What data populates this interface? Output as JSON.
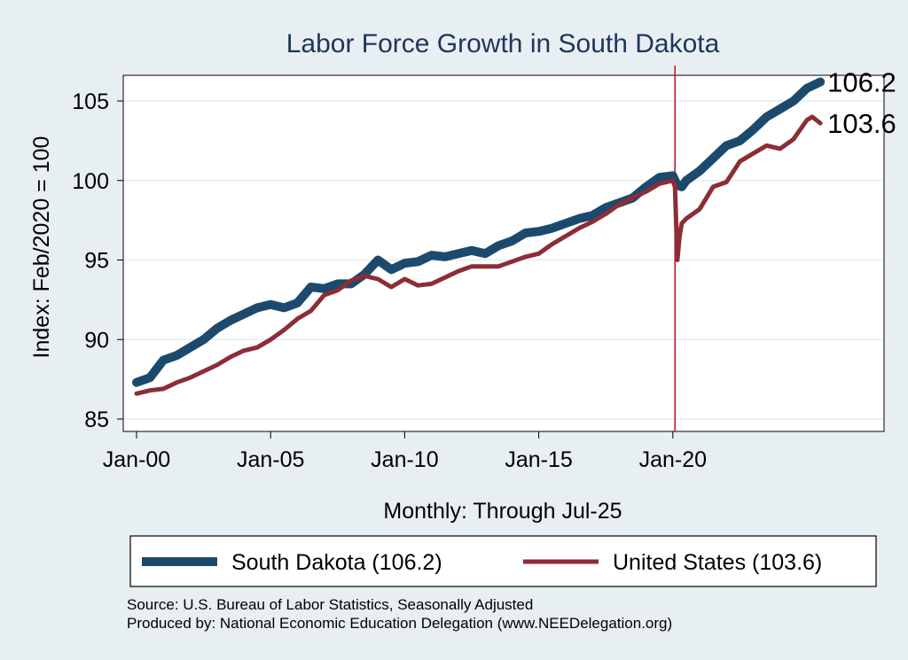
{
  "chart_data": {
    "type": "line",
    "title": "Labor Force Growth in South Dakota",
    "xlabel": "Monthly: Through Jul-25",
    "ylabel": "Index: Feb/2020 = 100",
    "xlim": [
      2000.0,
      2028.0
    ],
    "ylim": [
      84.5,
      107.1
    ],
    "x_ticks": [
      {
        "value": 2000,
        "label": "Jan-00"
      },
      {
        "value": 2005,
        "label": "Jan-05"
      },
      {
        "value": 2010,
        "label": "Jan-10"
      },
      {
        "value": 2015,
        "label": "Jan-15"
      },
      {
        "value": 2020,
        "label": "Jan-20"
      }
    ],
    "y_ticks": [
      85,
      90,
      95,
      100,
      105
    ],
    "grid": true,
    "vline": {
      "x": 2020.08,
      "color": "#c01a3a"
    },
    "series": [
      {
        "name": "South Dakota (106.2)",
        "color": "#1c4a6e",
        "end_label": "106.2",
        "x": [
          2000.0,
          2000.5,
          2001.0,
          2001.5,
          2002.0,
          2002.5,
          2003.0,
          2003.5,
          2004.0,
          2004.5,
          2005.0,
          2005.5,
          2006.0,
          2006.5,
          2007.0,
          2007.5,
          2008.0,
          2008.5,
          2009.0,
          2009.5,
          2010.0,
          2010.5,
          2011.0,
          2011.5,
          2012.0,
          2012.5,
          2013.0,
          2013.5,
          2014.0,
          2014.5,
          2015.0,
          2015.5,
          2016.0,
          2016.5,
          2017.0,
          2017.5,
          2018.0,
          2018.5,
          2019.0,
          2019.5,
          2020.0,
          2020.17,
          2020.33,
          2020.5,
          2021.0,
          2021.5,
          2022.0,
          2022.5,
          2023.0,
          2023.5,
          2024.0,
          2024.5,
          2025.0,
          2025.5
        ],
        "values": [
          87.3,
          87.6,
          88.7,
          89.0,
          89.5,
          90.0,
          90.7,
          91.2,
          91.6,
          92.0,
          92.2,
          92.0,
          92.3,
          93.3,
          93.2,
          93.5,
          93.5,
          94.1,
          95.0,
          94.4,
          94.8,
          94.9,
          95.3,
          95.2,
          95.4,
          95.6,
          95.4,
          95.9,
          96.2,
          96.7,
          96.8,
          97.0,
          97.3,
          97.6,
          97.8,
          98.3,
          98.6,
          98.9,
          99.6,
          100.2,
          100.3,
          99.7,
          99.6,
          100.0,
          100.6,
          101.4,
          102.2,
          102.5,
          103.2,
          104.0,
          104.5,
          105.0,
          105.8,
          106.2
        ]
      },
      {
        "name": "United States (103.6)",
        "color": "#8c2d35",
        "end_label": "103.6",
        "x": [
          2000.0,
          2000.5,
          2001.0,
          2001.5,
          2002.0,
          2002.5,
          2003.0,
          2003.5,
          2004.0,
          2004.5,
          2005.0,
          2005.5,
          2006.0,
          2006.5,
          2007.0,
          2007.5,
          2008.0,
          2008.5,
          2009.0,
          2009.5,
          2010.0,
          2010.5,
          2011.0,
          2011.5,
          2012.0,
          2012.5,
          2013.0,
          2013.5,
          2014.0,
          2014.5,
          2015.0,
          2015.5,
          2016.0,
          2016.5,
          2017.0,
          2017.5,
          2018.0,
          2018.5,
          2019.0,
          2019.5,
          2020.0,
          2020.08,
          2020.17,
          2020.25,
          2020.33,
          2020.5,
          2021.0,
          2021.5,
          2022.0,
          2022.5,
          2023.0,
          2023.5,
          2024.0,
          2024.5,
          2025.0,
          2025.2,
          2025.5
        ],
        "values": [
          86.6,
          86.8,
          86.9,
          87.3,
          87.6,
          88.0,
          88.4,
          88.9,
          89.3,
          89.5,
          90.0,
          90.6,
          91.3,
          91.8,
          92.8,
          93.1,
          93.7,
          94.0,
          93.8,
          93.3,
          93.8,
          93.4,
          93.5,
          93.9,
          94.3,
          94.6,
          94.6,
          94.6,
          94.9,
          95.2,
          95.4,
          96.0,
          96.5,
          97.0,
          97.4,
          97.9,
          98.5,
          98.9,
          99.3,
          99.8,
          100.0,
          99.6,
          95.0,
          96.5,
          97.3,
          97.6,
          98.2,
          99.6,
          99.9,
          101.2,
          101.7,
          102.2,
          102.0,
          102.6,
          103.8,
          104.0,
          103.6
        ]
      }
    ]
  },
  "notes": {
    "source": "Source: U.S. Bureau of Labor Statistics, Seasonally Adjusted",
    "producer": "Produced by: National Economic Education Delegation (www.NEEDelegation.org)"
  }
}
